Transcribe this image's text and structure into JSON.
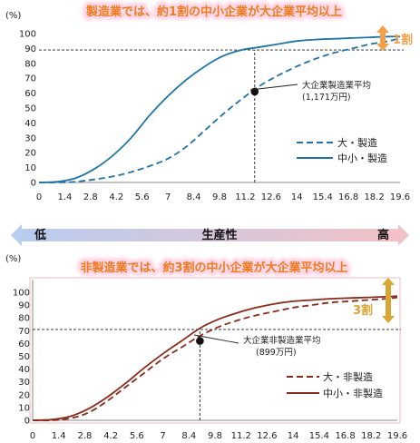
{
  "colors": {
    "title_orange": "#f07a1e",
    "title_glow": "#ffd6e6",
    "blue": "#1f74a8",
    "brown": "#8b2a1b",
    "arrow_orange": "#f2a04a",
    "arrow_gold": "#d8a632",
    "band_left": "#b7cdf0",
    "band_right": "#f3c1c6"
  },
  "band": {
    "low": "低",
    "mid": "生産性",
    "high": "高"
  },
  "chart_data": [
    {
      "type": "line",
      "title": "製造業では、約1割の中小企業が大企業平均以上",
      "ylabel": "(%)",
      "ylim": [
        0,
        100
      ],
      "yticks": [
        "0",
        "10",
        "20",
        "30",
        "40",
        "50",
        "60",
        "70",
        "80",
        "90",
        "100"
      ],
      "xlim": [
        0,
        19.6
      ],
      "xticks": [
        "0",
        "1.4",
        "2.8",
        "4.2",
        "5.6",
        "7",
        "8.4",
        "9.8",
        "11.2",
        "12.6",
        "14",
        "15.4",
        "16.8",
        "18.2",
        "19.6"
      ],
      "series": [
        {
          "name": "大・製造",
          "style": "dashed",
          "color": "#1f74a8",
          "x": [
            0,
            1,
            2,
            3,
            4,
            5,
            6,
            7,
            8,
            9,
            10,
            11,
            12,
            13,
            14,
            15,
            16,
            17,
            18,
            19,
            19.6
          ],
          "y": [
            0,
            0,
            0.5,
            2,
            4,
            7,
            11,
            16,
            24,
            35,
            46,
            56,
            65,
            72,
            78,
            83,
            87,
            90,
            93,
            95,
            97
          ]
        },
        {
          "name": "中小・製造",
          "style": "solid",
          "color": "#1f74a8",
          "x": [
            0,
            1,
            2,
            3,
            4,
            5,
            6,
            7,
            8,
            9,
            10,
            11,
            12,
            13,
            14,
            15,
            16,
            17,
            18,
            19,
            19.6
          ],
          "y": [
            0,
            0.5,
            3,
            9,
            18,
            30,
            45,
            58,
            69,
            78,
            85,
            89,
            91,
            93,
            95,
            96,
            96.5,
            97,
            97.5,
            98,
            98
          ]
        }
      ],
      "reference": {
        "label": "大企業製造業平均",
        "value_label": "(1,171万円)",
        "x": 11.71,
        "y": 61,
        "hline_y": 89
      },
      "arrow_label": "1割"
    },
    {
      "type": "line",
      "title": "非製造業では、約3割の中小企業が大企業平均以上",
      "ylabel": "(%)",
      "ylim": [
        0,
        100
      ],
      "yticks": [
        "0",
        "10",
        "20",
        "30",
        "40",
        "50",
        "60",
        "70",
        "80",
        "90",
        "100"
      ],
      "xlim": [
        0,
        19.6
      ],
      "xticks": [
        "0",
        "1.4",
        "2.8",
        "4.2",
        "5.6",
        "7",
        "8.4",
        "9.8",
        "11.2",
        "12.6",
        "14",
        "15.4",
        "16.8",
        "18.2",
        "19.6"
      ],
      "series": [
        {
          "name": "大・非製造",
          "style": "dashed",
          "color": "#8b2a1b",
          "x": [
            0,
            1,
            2,
            3,
            4,
            5,
            6,
            7,
            8,
            9,
            10,
            11,
            12,
            13,
            14,
            15,
            16,
            17,
            18,
            19,
            19.6
          ],
          "y": [
            0,
            0,
            1.5,
            6,
            15,
            26,
            37,
            48,
            57,
            66,
            73,
            78,
            82,
            85,
            88,
            90,
            92,
            93,
            94,
            95,
            96
          ]
        },
        {
          "name": "中小・非製造",
          "style": "solid",
          "color": "#8b2a1b",
          "x": [
            0,
            1,
            2,
            3,
            4,
            5,
            6,
            7,
            8,
            9,
            10,
            11,
            12,
            13,
            14,
            15,
            16,
            17,
            18,
            19,
            19.6
          ],
          "y": [
            0,
            0.5,
            3,
            9,
            18,
            29,
            41,
            52,
            62,
            72,
            79,
            84,
            88,
            91,
            93,
            94,
            95,
            95.5,
            96,
            96.5,
            97
          ]
        }
      ],
      "reference": {
        "label": "大企業非製造業平均",
        "value_label": "(899万円)",
        "x": 8.99,
        "y": 62,
        "hline_y": 71
      },
      "arrow_label": "3割"
    }
  ]
}
